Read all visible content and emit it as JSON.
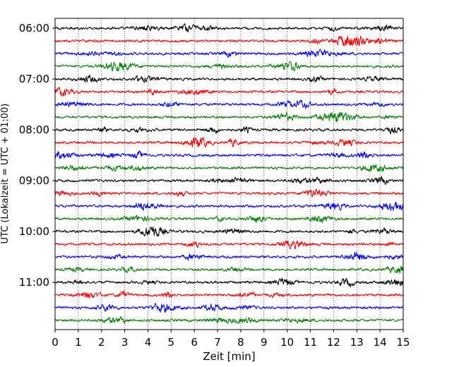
{
  "chart_data": {
    "type": "line",
    "title": "",
    "xlabel": "Zeit  [min]",
    "ylabel": "UTC (Lokalzeit = UTC + 01:00)",
    "xlim": [
      0,
      15
    ],
    "x_ticks": [
      "0",
      "1",
      "2",
      "3",
      "4",
      "5",
      "6",
      "7",
      "8",
      "9",
      "10",
      "11",
      "12",
      "13",
      "14",
      "15"
    ],
    "y_ticks": [
      "06:00",
      "07:00",
      "08:00",
      "09:00",
      "10:00",
      "11:00"
    ],
    "grid": "vertical dotted lines at each minute",
    "trace_start": "06:00",
    "trace_interval_minutes": 15,
    "trace_count": 24,
    "trace_colors": [
      "#000000",
      "#ff0000",
      "#0000ff",
      "#008000"
    ],
    "trace_kind": "seismogram noise traces (one trace per 15 minutes, colors cycle black, red, blue, green)"
  }
}
